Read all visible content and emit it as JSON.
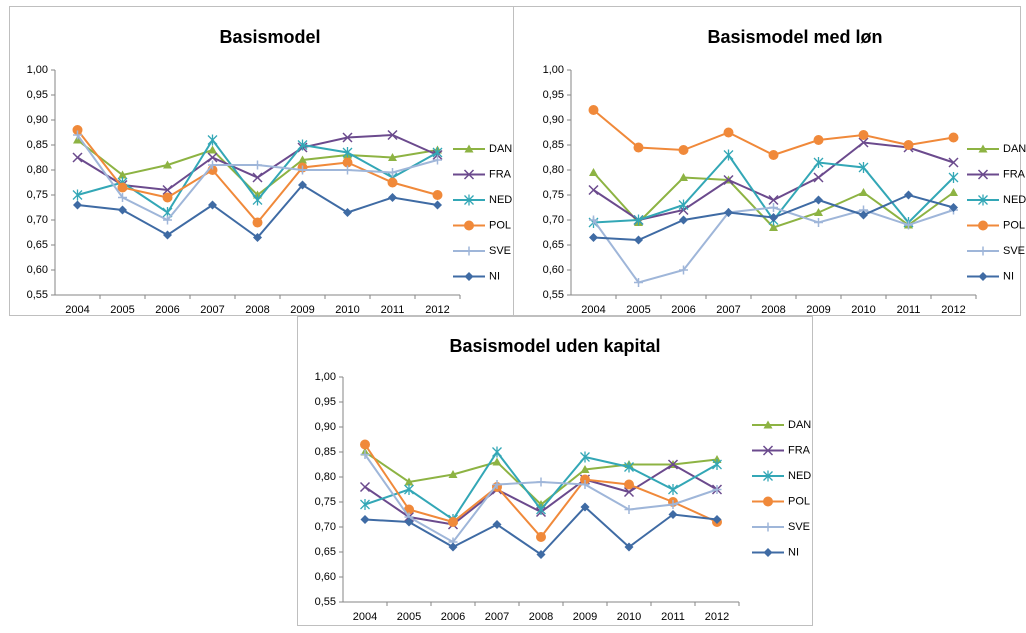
{
  "chart_data": [
    {
      "type": "line",
      "title": "Basismodel",
      "categories": [
        "2004",
        "2005",
        "2006",
        "2007",
        "2008",
        "2009",
        "2010",
        "2011",
        "2012"
      ],
      "ylim": [
        0.55,
        1.0
      ],
      "yticks": [
        {
          "value": 0.55,
          "label": "0,55"
        },
        {
          "value": 0.6,
          "label": "0,60"
        },
        {
          "value": 0.65,
          "label": "0,65"
        },
        {
          "value": 0.7,
          "label": "0,70"
        },
        {
          "value": 0.75,
          "label": "0,75"
        },
        {
          "value": 0.8,
          "label": "0,80"
        },
        {
          "value": 0.85,
          "label": "0,85"
        },
        {
          "value": 0.9,
          "label": "0,90"
        },
        {
          "value": 0.95,
          "label": "0,95"
        },
        {
          "value": 1.0,
          "label": "1,00"
        }
      ],
      "series": [
        {
          "name": "DAN",
          "color": "#8db343",
          "values": [
            0.86,
            0.79,
            0.81,
            0.84,
            0.75,
            0.82,
            0.83,
            0.825,
            0.84
          ]
        },
        {
          "name": "FRA",
          "color": "#6b4a8d",
          "values": [
            0.825,
            0.77,
            0.76,
            0.825,
            0.785,
            0.845,
            0.865,
            0.87,
            0.83
          ]
        },
        {
          "name": "NED",
          "color": "#33a7b6",
          "values": [
            0.75,
            0.775,
            0.715,
            0.86,
            0.74,
            0.85,
            0.835,
            0.785,
            0.835
          ]
        },
        {
          "name": "POL",
          "color": "#f0893a",
          "values": [
            0.88,
            0.765,
            0.745,
            0.8,
            0.695,
            0.805,
            0.815,
            0.775,
            0.75
          ]
        },
        {
          "name": "SVE",
          "color": "#9fb6d9",
          "values": [
            0.87,
            0.745,
            0.7,
            0.81,
            0.81,
            0.8,
            0.8,
            0.795,
            0.82
          ]
        },
        {
          "name": "NI",
          "color": "#3f6ba4",
          "values": [
            0.73,
            0.72,
            0.67,
            0.73,
            0.665,
            0.77,
            0.715,
            0.745,
            0.73
          ]
        }
      ]
    },
    {
      "type": "line",
      "title": "Basismodel med løn",
      "categories": [
        "2004",
        "2005",
        "2006",
        "2007",
        "2008",
        "2009",
        "2010",
        "2011",
        "2012"
      ],
      "ylim": [
        0.55,
        1.0
      ],
      "yticks": [
        {
          "value": 0.55,
          "label": "0,55"
        },
        {
          "value": 0.6,
          "label": "0,60"
        },
        {
          "value": 0.65,
          "label": "0,65"
        },
        {
          "value": 0.7,
          "label": "0,70"
        },
        {
          "value": 0.75,
          "label": "0,75"
        },
        {
          "value": 0.8,
          "label": "0,80"
        },
        {
          "value": 0.85,
          "label": "0,85"
        },
        {
          "value": 0.9,
          "label": "0,90"
        },
        {
          "value": 0.95,
          "label": "0,95"
        },
        {
          "value": 1.0,
          "label": "1,00"
        }
      ],
      "series": [
        {
          "name": "DAN",
          "color": "#8db343",
          "values": [
            0.795,
            0.695,
            0.785,
            0.78,
            0.685,
            0.715,
            0.755,
            0.69,
            0.755
          ]
        },
        {
          "name": "FRA",
          "color": "#6b4a8d",
          "values": [
            0.76,
            0.7,
            0.72,
            0.78,
            0.74,
            0.785,
            0.855,
            0.845,
            0.815
          ]
        },
        {
          "name": "NED",
          "color": "#33a7b6",
          "values": [
            0.695,
            0.7,
            0.73,
            0.83,
            0.7,
            0.815,
            0.805,
            0.695,
            0.785
          ]
        },
        {
          "name": "POL",
          "color": "#f0893a",
          "values": [
            0.92,
            0.845,
            0.84,
            0.875,
            0.83,
            0.86,
            0.87,
            0.85,
            0.865
          ]
        },
        {
          "name": "SVE",
          "color": "#9fb6d9",
          "values": [
            0.7,
            0.575,
            0.6,
            0.715,
            0.725,
            0.695,
            0.72,
            0.69,
            0.72
          ]
        },
        {
          "name": "NI",
          "color": "#3f6ba4",
          "values": [
            0.665,
            0.66,
            0.7,
            0.715,
            0.705,
            0.74,
            0.71,
            0.75,
            0.725
          ]
        }
      ]
    },
    {
      "type": "line",
      "title": "Basismodel uden kapital",
      "categories": [
        "2004",
        "2005",
        "2006",
        "2007",
        "2008",
        "2009",
        "2010",
        "2011",
        "2012"
      ],
      "ylim": [
        0.55,
        1.0
      ],
      "yticks": [
        {
          "value": 0.55,
          "label": "0,55"
        },
        {
          "value": 0.6,
          "label": "0,60"
        },
        {
          "value": 0.65,
          "label": "0,65"
        },
        {
          "value": 0.7,
          "label": "0,70"
        },
        {
          "value": 0.75,
          "label": "0,75"
        },
        {
          "value": 0.8,
          "label": "0,80"
        },
        {
          "value": 0.85,
          "label": "0,85"
        },
        {
          "value": 0.9,
          "label": "0,90"
        },
        {
          "value": 0.95,
          "label": "0,95"
        },
        {
          "value": 1.0,
          "label": "1,00"
        }
      ],
      "series": [
        {
          "name": "DAN",
          "color": "#8db343",
          "values": [
            0.85,
            0.79,
            0.805,
            0.83,
            0.745,
            0.815,
            0.825,
            0.825,
            0.835
          ]
        },
        {
          "name": "FRA",
          "color": "#6b4a8d",
          "values": [
            0.78,
            0.72,
            0.705,
            0.775,
            0.73,
            0.795,
            0.77,
            0.825,
            0.775
          ]
        },
        {
          "name": "NED",
          "color": "#33a7b6",
          "values": [
            0.745,
            0.775,
            0.715,
            0.85,
            0.735,
            0.84,
            0.82,
            0.775,
            0.825
          ]
        },
        {
          "name": "POL",
          "color": "#f0893a",
          "values": [
            0.865,
            0.735,
            0.71,
            0.78,
            0.68,
            0.795,
            0.785,
            0.75,
            0.71
          ]
        },
        {
          "name": "SVE",
          "color": "#9fb6d9",
          "values": [
            0.845,
            0.72,
            0.67,
            0.785,
            0.79,
            0.785,
            0.735,
            0.745,
            0.775
          ]
        },
        {
          "name": "NI",
          "color": "#3f6ba4",
          "values": [
            0.715,
            0.71,
            0.66,
            0.705,
            0.645,
            0.74,
            0.66,
            0.725,
            0.715
          ]
        }
      ]
    }
  ]
}
